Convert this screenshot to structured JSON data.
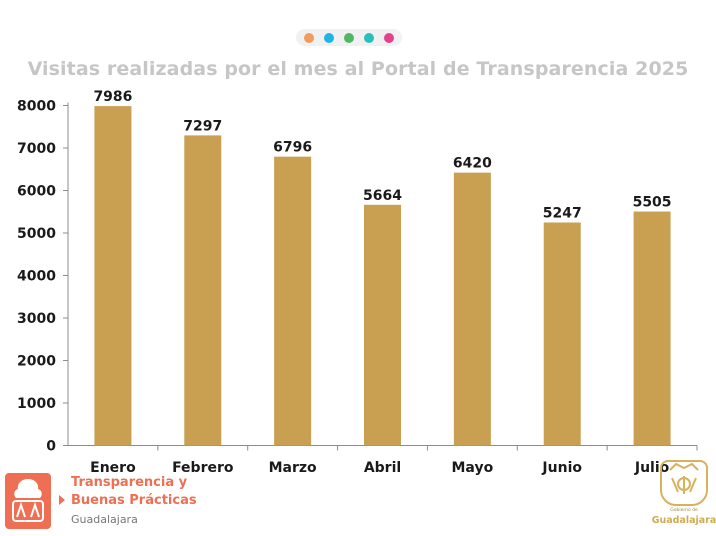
{
  "header": {
    "dot_colors": [
      "#f39a5d",
      "#1fb4e6",
      "#4fb862",
      "#27c0bc",
      "#e3428b"
    ]
  },
  "chart_data": {
    "type": "bar",
    "title": "Visitas realizadas por el mes al Portal de Transparencia 2025",
    "categories": [
      "Enero",
      "Febrero",
      "Marzo",
      "Abril",
      "Mayo",
      "Junio",
      "Julio"
    ],
    "values": [
      7986,
      7297,
      6796,
      5664,
      6420,
      5247,
      5505
    ],
    "ylim": [
      0,
      8000
    ],
    "yticks": [
      "0",
      "1000",
      "2000",
      "3000",
      "4000",
      "5000",
      "6000",
      "7000",
      "8000"
    ],
    "grid": false,
    "data_labels": true,
    "bar_color": "#c99f52",
    "axis_color": "#8c8c8c"
  },
  "footer": {
    "brand_line1": "Transparencia y",
    "brand_line2": "Buenas Prácticas",
    "brand_sub": "Guadalajara",
    "brand_color": "#ee6f53",
    "seal_small": "Gobierno de",
    "seal_name": "Guadalajara",
    "seal_color": "#d1ab52"
  }
}
